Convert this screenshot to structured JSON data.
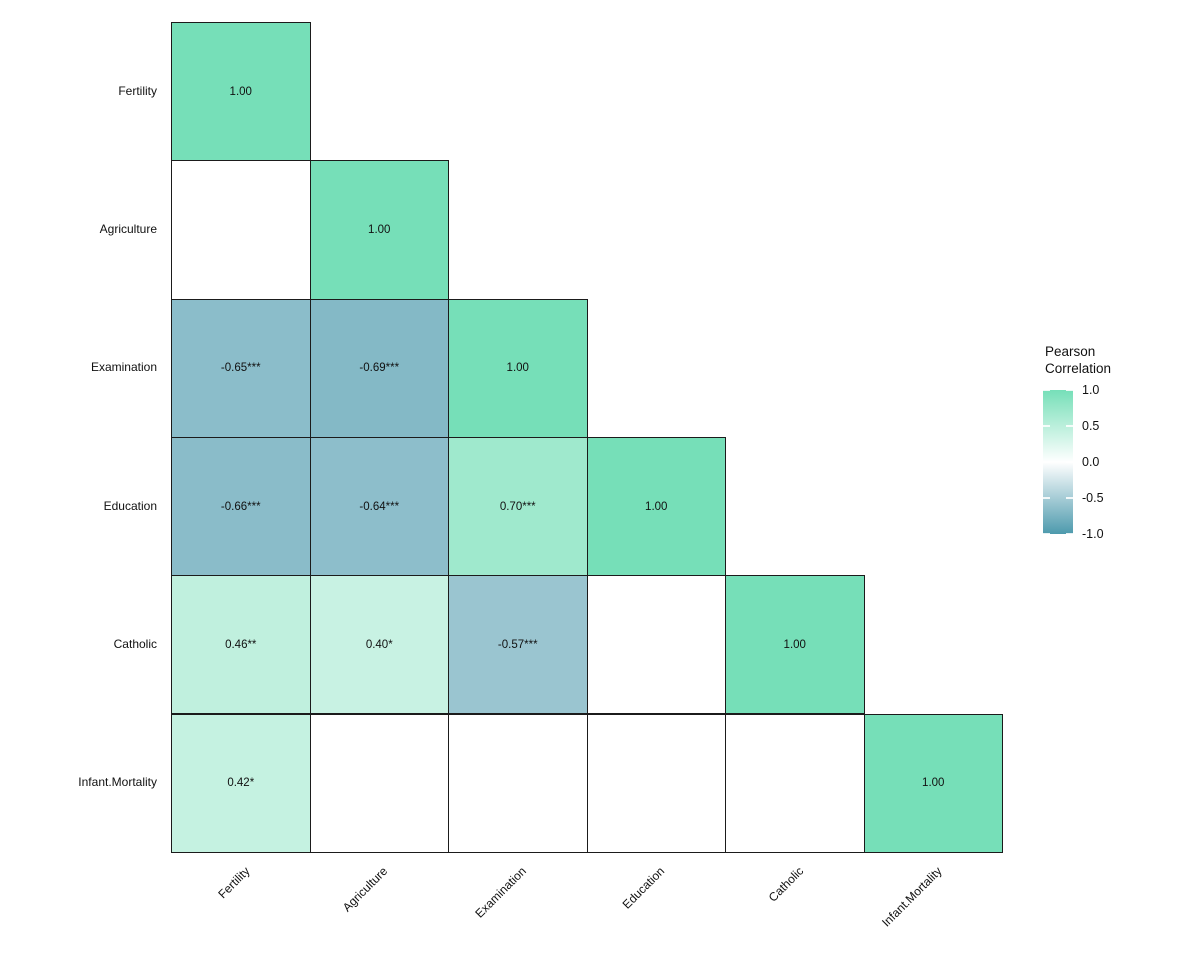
{
  "chart_data": {
    "type": "heatmap",
    "subtype": "correlation-matrix-lower-triangle",
    "title": "",
    "variables": [
      "Fertility",
      "Agriculture",
      "Examination",
      "Education",
      "Catholic",
      "Infant.Mortality"
    ],
    "legend": {
      "title_lines": [
        "Pearson",
        "Correlation"
      ],
      "ticks": [
        {
          "label": "1.0",
          "value": 1.0
        },
        {
          "label": "0.5",
          "value": 0.5
        },
        {
          "label": "0.0",
          "value": 0.0
        },
        {
          "label": "-0.5",
          "value": -0.5
        },
        {
          "label": "-1.0",
          "value": -1.0
        }
      ],
      "min": -1.0,
      "max": 1.0,
      "position": "right"
    },
    "colors": {
      "high": "#76dfb8",
      "mid": "#ffffff",
      "low": "#4d9aad",
      "blank_cell": "#ffffff",
      "cell_border": "#1b1b1b",
      "text": "#111111"
    },
    "grid": false,
    "cells": [
      {
        "row": "Fertility",
        "col": "Fertility",
        "value": 1.0,
        "label": "1.00"
      },
      {
        "row": "Agriculture",
        "col": "Fertility",
        "value": null,
        "label": ""
      },
      {
        "row": "Agriculture",
        "col": "Agriculture",
        "value": 1.0,
        "label": "1.00"
      },
      {
        "row": "Examination",
        "col": "Fertility",
        "value": -0.65,
        "label": "-0.65***"
      },
      {
        "row": "Examination",
        "col": "Agriculture",
        "value": -0.69,
        "label": "-0.69***"
      },
      {
        "row": "Examination",
        "col": "Examination",
        "value": 1.0,
        "label": "1.00"
      },
      {
        "row": "Education",
        "col": "Fertility",
        "value": -0.66,
        "label": "-0.66***"
      },
      {
        "row": "Education",
        "col": "Agriculture",
        "value": -0.64,
        "label": "-0.64***"
      },
      {
        "row": "Education",
        "col": "Examination",
        "value": 0.7,
        "label": "0.70***"
      },
      {
        "row": "Education",
        "col": "Education",
        "value": 1.0,
        "label": "1.00"
      },
      {
        "row": "Catholic",
        "col": "Fertility",
        "value": 0.46,
        "label": "0.46**"
      },
      {
        "row": "Catholic",
        "col": "Agriculture",
        "value": 0.4,
        "label": "0.40*"
      },
      {
        "row": "Catholic",
        "col": "Examination",
        "value": -0.57,
        "label": "-0.57***"
      },
      {
        "row": "Catholic",
        "col": "Education",
        "value": null,
        "label": ""
      },
      {
        "row": "Catholic",
        "col": "Catholic",
        "value": 1.0,
        "label": "1.00"
      },
      {
        "row": "Infant.Mortality",
        "col": "Fertility",
        "value": 0.42,
        "label": "0.42*"
      },
      {
        "row": "Infant.Mortality",
        "col": "Agriculture",
        "value": null,
        "label": ""
      },
      {
        "row": "Infant.Mortality",
        "col": "Examination",
        "value": null,
        "label": ""
      },
      {
        "row": "Infant.Mortality",
        "col": "Education",
        "value": null,
        "label": ""
      },
      {
        "row": "Infant.Mortality",
        "col": "Catholic",
        "value": null,
        "label": ""
      },
      {
        "row": "Infant.Mortality",
        "col": "Infant.Mortality",
        "value": 1.0,
        "label": "1.00"
      }
    ]
  }
}
